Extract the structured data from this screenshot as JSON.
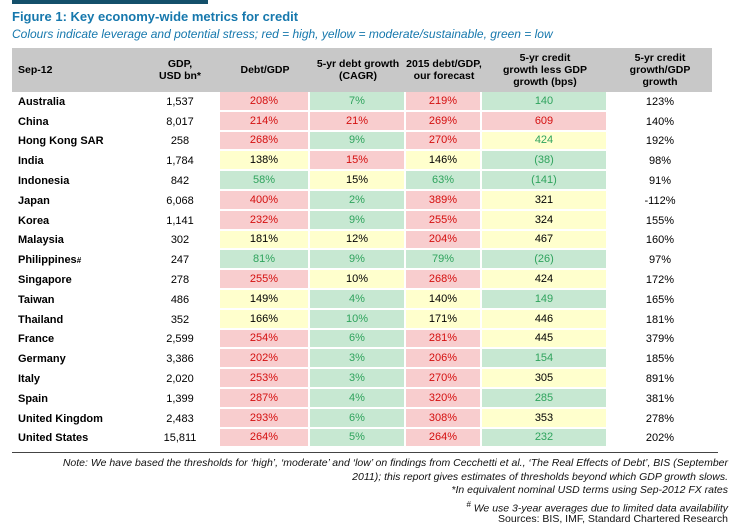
{
  "title": "Figure 1: Key economy-wide metrics for credit",
  "subtitle": "Colours indicate leverage and potential stress; red = high, yellow = moderate/sustainable, green = low",
  "colors": {
    "accent_blue": "#1678ad",
    "top_bar": "#14506b",
    "header_bg": "#c8c8c8",
    "red_bg": "#f8cdce",
    "red_text": "#d40f0f",
    "green_bg": "#c7e8d2",
    "green_text": "#2fa35d",
    "yellow_bg": "#ffffcd"
  },
  "legend_meaning": {
    "red": "high",
    "yellow": "moderate/sustainable",
    "green": "low"
  },
  "table": {
    "headers": [
      "Sep-12",
      "GDP,\nUSD bn*",
      "Debt/GDP",
      "5-yr debt growth\n(CAGR)",
      "2015 debt/GDP,\nour forecast",
      "5-yr credit\ngrowth less GDP\ngrowth (bps)",
      "5-yr credit\ngrowth/GDP\ngrowth"
    ],
    "rows": [
      {
        "country": "Australia",
        "sup": "",
        "gdp": "1,537",
        "cells": [
          {
            "v": "208%",
            "c": "R"
          },
          {
            "v": "7%",
            "c": "G"
          },
          {
            "v": "219%",
            "c": "R"
          },
          {
            "v": "140",
            "c": "G"
          }
        ],
        "growth": "123%"
      },
      {
        "country": "China",
        "sup": "",
        "gdp": "8,017",
        "cells": [
          {
            "v": "214%",
            "c": "R"
          },
          {
            "v": "21%",
            "c": "R"
          },
          {
            "v": "269%",
            "c": "R"
          },
          {
            "v": "609",
            "c": "R"
          }
        ],
        "growth": "140%"
      },
      {
        "country": "Hong Kong SAR",
        "sup": "",
        "gdp": "258",
        "cells": [
          {
            "v": "268%",
            "c": "R"
          },
          {
            "v": "9%",
            "c": "G"
          },
          {
            "v": "270%",
            "c": "R"
          },
          {
            "v": "424",
            "c": "YG"
          }
        ],
        "growth": "192%"
      },
      {
        "country": "India",
        "sup": "",
        "gdp": "1,784",
        "cells": [
          {
            "v": "138%",
            "c": "Y"
          },
          {
            "v": "15%",
            "c": "R"
          },
          {
            "v": "146%",
            "c": "Y"
          },
          {
            "v": "(38)",
            "c": "G"
          }
        ],
        "growth": "98%"
      },
      {
        "country": "Indonesia",
        "sup": "",
        "gdp": "842",
        "cells": [
          {
            "v": "58%",
            "c": "G"
          },
          {
            "v": "15%",
            "c": "Y"
          },
          {
            "v": "63%",
            "c": "G"
          },
          {
            "v": "(141)",
            "c": "G"
          }
        ],
        "growth": "91%"
      },
      {
        "country": "Japan",
        "sup": "",
        "gdp": "6,068",
        "cells": [
          {
            "v": "400%",
            "c": "R"
          },
          {
            "v": "2%",
            "c": "G"
          },
          {
            "v": "389%",
            "c": "R"
          },
          {
            "v": "321",
            "c": "Y"
          }
        ],
        "growth": "-112%"
      },
      {
        "country": "Korea",
        "sup": "",
        "gdp": "1,141",
        "cells": [
          {
            "v": "232%",
            "c": "R"
          },
          {
            "v": "9%",
            "c": "G"
          },
          {
            "v": "255%",
            "c": "R"
          },
          {
            "v": "324",
            "c": "Y"
          }
        ],
        "growth": "155%"
      },
      {
        "country": "Malaysia",
        "sup": "",
        "gdp": "302",
        "cells": [
          {
            "v": "181%",
            "c": "Y"
          },
          {
            "v": "12%",
            "c": "Y"
          },
          {
            "v": "204%",
            "c": "R"
          },
          {
            "v": "467",
            "c": "Y"
          }
        ],
        "growth": "160%"
      },
      {
        "country": "Philippines",
        "sup": "#",
        "gdp": "247",
        "cells": [
          {
            "v": "81%",
            "c": "G"
          },
          {
            "v": "9%",
            "c": "G"
          },
          {
            "v": "79%",
            "c": "G"
          },
          {
            "v": "(26)",
            "c": "G"
          }
        ],
        "growth": "97%"
      },
      {
        "country": "Singapore",
        "sup": "",
        "gdp": "278",
        "cells": [
          {
            "v": "255%",
            "c": "R"
          },
          {
            "v": "10%",
            "c": "Y"
          },
          {
            "v": "268%",
            "c": "R"
          },
          {
            "v": "424",
            "c": "Y"
          }
        ],
        "growth": "172%"
      },
      {
        "country": "Taiwan",
        "sup": "",
        "gdp": "486",
        "cells": [
          {
            "v": "149%",
            "c": "Y"
          },
          {
            "v": "4%",
            "c": "G"
          },
          {
            "v": "140%",
            "c": "Y"
          },
          {
            "v": "149",
            "c": "G"
          }
        ],
        "growth": "165%"
      },
      {
        "country": "Thailand",
        "sup": "",
        "gdp": "352",
        "cells": [
          {
            "v": "166%",
            "c": "Y"
          },
          {
            "v": "10%",
            "c": "G"
          },
          {
            "v": "171%",
            "c": "Y"
          },
          {
            "v": "446",
            "c": "Y"
          }
        ],
        "growth": "181%"
      },
      {
        "country": "France",
        "sup": "",
        "gdp": "2,599",
        "cells": [
          {
            "v": "254%",
            "c": "R"
          },
          {
            "v": "6%",
            "c": "G"
          },
          {
            "v": "281%",
            "c": "R"
          },
          {
            "v": "445",
            "c": "Y"
          }
        ],
        "growth": "379%"
      },
      {
        "country": "Germany",
        "sup": "",
        "gdp": "3,386",
        "cells": [
          {
            "v": "202%",
            "c": "R"
          },
          {
            "v": "3%",
            "c": "G"
          },
          {
            "v": "206%",
            "c": "R"
          },
          {
            "v": "154",
            "c": "G"
          }
        ],
        "growth": "185%"
      },
      {
        "country": "Italy",
        "sup": "",
        "gdp": "2,020",
        "cells": [
          {
            "v": "253%",
            "c": "R"
          },
          {
            "v": "3%",
            "c": "G"
          },
          {
            "v": "270%",
            "c": "R"
          },
          {
            "v": "305",
            "c": "Y"
          }
        ],
        "growth": "891%"
      },
      {
        "country": "Spain",
        "sup": "",
        "gdp": "1,399",
        "cells": [
          {
            "v": "287%",
            "c": "R"
          },
          {
            "v": "4%",
            "c": "G"
          },
          {
            "v": "320%",
            "c": "R"
          },
          {
            "v": "285",
            "c": "G"
          }
        ],
        "growth": "381%"
      },
      {
        "country": "United Kingdom",
        "sup": "",
        "gdp": "2,483",
        "cells": [
          {
            "v": "293%",
            "c": "R"
          },
          {
            "v": "6%",
            "c": "G"
          },
          {
            "v": "308%",
            "c": "R"
          },
          {
            "v": "353",
            "c": "Y"
          }
        ],
        "growth": "278%"
      },
      {
        "country": "United States",
        "sup": "",
        "gdp": "15,811",
        "cells": [
          {
            "v": "264%",
            "c": "R"
          },
          {
            "v": "5%",
            "c": "G"
          },
          {
            "v": "264%",
            "c": "R"
          },
          {
            "v": "232",
            "c": "G"
          }
        ],
        "growth": "202%"
      }
    ]
  },
  "notes": [
    {
      "sup": "",
      "text": "Note: We have based the thresholds for ‘high’, ‘moderate’ and ‘low’ on findings from Cecchetti et al., ‘The Real Effects of Debt’, BIS (September"
    },
    {
      "sup": "",
      "text": "2011); this report gives estimates of thresholds beyond which GDP growth slows."
    },
    {
      "sup": "",
      "text": "*In equivalent nominal USD terms using Sep-2012 FX rates"
    },
    {
      "sup": "#",
      "text": " We use 3-year averages due to limited data availability"
    }
  ],
  "sources": "Sources: BIS, IMF, Standard Chartered Research"
}
